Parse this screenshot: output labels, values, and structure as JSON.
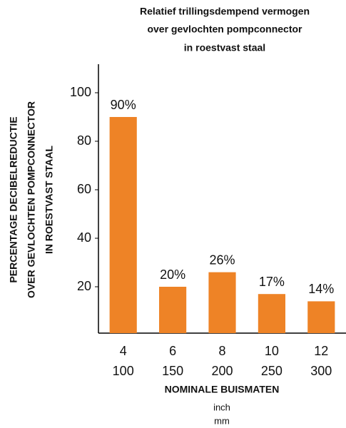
{
  "chart_data": {
    "type": "bar",
    "title": [
      "Relatief trillingsdempend vermogen",
      "over gevlochten pompconnector",
      "in roestvast staal"
    ],
    "y_label": [
      "PERCENTAGE DECIBELREDUCTIE",
      "OVER GEVLOCHTEN POMPCONNECTOR",
      "IN ROESTVAST STAAL"
    ],
    "x_label": "NOMINALE BUISMATEN",
    "x_units": [
      "inch",
      "mm"
    ],
    "categories": [
      [
        "4",
        "100"
      ],
      [
        "6",
        "150"
      ],
      [
        "8",
        "200"
      ],
      [
        "10",
        "250"
      ],
      [
        "12",
        "300"
      ]
    ],
    "values": [
      90,
      20,
      26,
      17,
      14
    ],
    "value_labels": [
      "90%",
      "20%",
      "26%",
      "17%",
      "14%"
    ],
    "color": "#ee8326",
    "ylim": [
      0,
      110
    ],
    "yticks": [
      20,
      40,
      60,
      80,
      100
    ],
    "grid": false
  }
}
